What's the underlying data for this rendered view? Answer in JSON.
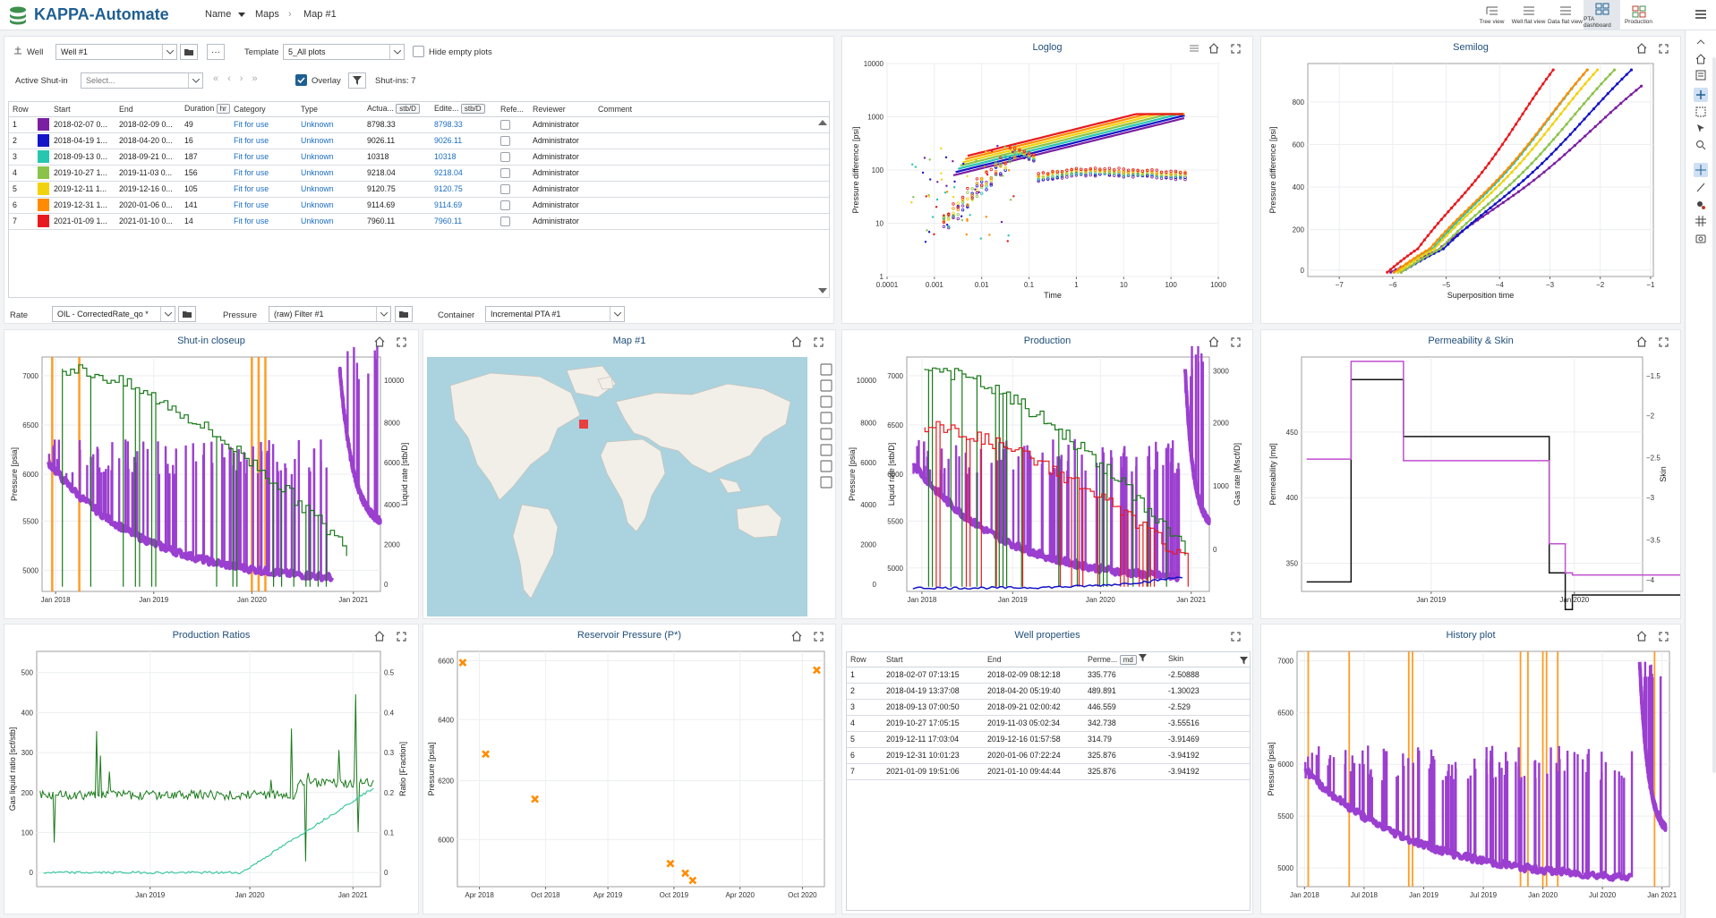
{
  "app": {
    "title": "KAPPA-Automate"
  },
  "breadcrumb": {
    "items": [
      "Name",
      "Maps",
      "Map #1"
    ]
  },
  "views": [
    {
      "label": "Tree view"
    },
    {
      "label": "Well flat view"
    },
    {
      "label": "Data flat view"
    },
    {
      "label": "PTA dashboard"
    },
    {
      "label": "Production"
    }
  ],
  "well_panel": {
    "well_label": "Well",
    "well_value": "Well #1",
    "template_label": "Template",
    "template_value": "5_All plots",
    "hide_empty_label": "Hide empty plots",
    "active_shutin_label": "Active Shut-in",
    "active_shutin_placeholder": "Select...",
    "overlay_label": "Overlay",
    "shutins_label": "Shut-ins: 7",
    "columns": {
      "row": "Row",
      "start": "Start",
      "end": "End",
      "duration": "Duration",
      "duration_unit": "hr",
      "category": "Category",
      "type": "Type",
      "actual": "Actua...",
      "actual_unit": "stb/D",
      "edited": "Edite...",
      "edited_unit": "stb/D",
      "reference": "Refe...",
      "reviewer": "Reviewer",
      "comment": "Comment"
    },
    "rows": [
      {
        "row": "1",
        "color": "#7b1fa2",
        "start": "2018-02-07 0...",
        "end": "2018-02-09 0...",
        "duration": "49",
        "category": "Fit for use",
        "type": "Unknown",
        "actual": "8798.33",
        "edited": "8798.33",
        "reviewer": "Administrator"
      },
      {
        "row": "2",
        "color": "#1414c8",
        "start": "2018-04-19 1...",
        "end": "2018-04-20 0...",
        "duration": "16",
        "category": "Fit for use",
        "type": "Unknown",
        "actual": "9026.11",
        "edited": "9026.11",
        "reviewer": "Administrator"
      },
      {
        "row": "3",
        "color": "#26c6b0",
        "start": "2018-09-13 0...",
        "end": "2018-09-21 0...",
        "duration": "187",
        "category": "Fit for use",
        "type": "Unknown",
        "actual": "10318",
        "edited": "10318",
        "reviewer": "Administrator"
      },
      {
        "row": "4",
        "color": "#8bc34a",
        "start": "2019-10-27 1...",
        "end": "2019-11-03 0...",
        "duration": "156",
        "category": "Fit for use",
        "type": "Unknown",
        "actual": "9218.04",
        "edited": "9218.04",
        "reviewer": "Administrator"
      },
      {
        "row": "5",
        "color": "#f2d20f",
        "start": "2019-12-11 1...",
        "end": "2019-12-16 0...",
        "duration": "105",
        "category": "Fit for use",
        "type": "Unknown",
        "actual": "9120.75",
        "edited": "9120.75",
        "reviewer": "Administrator"
      },
      {
        "row": "6",
        "color": "#ff8c00",
        "start": "2019-12-31 1...",
        "end": "2020-01-06 0...",
        "duration": "141",
        "category": "Fit for use",
        "type": "Unknown",
        "actual": "9114.69",
        "edited": "9114.69",
        "reviewer": "Administrator"
      },
      {
        "row": "7",
        "color": "#e8191e",
        "start": "2021-01-09 1...",
        "end": "2021-01-10 0...",
        "duration": "14",
        "category": "Fit for use",
        "type": "Unknown",
        "actual": "7960.11",
        "edited": "7960.11",
        "reviewer": "Administrator"
      }
    ],
    "rate_label": "Rate",
    "rate_value": "OIL - CorrectedRate_qo *",
    "pressure_label": "Pressure",
    "pressure_value": "(raw) Filter #1",
    "container_label": "Container",
    "container_value": "Incremental PTA #1"
  },
  "plots": {
    "loglog": {
      "title": "Loglog",
      "xlabel": "Time",
      "ylabel": "Pressure difference [psi]",
      "xticks": [
        "0.0001",
        "0.001",
        "0.01",
        "0.1",
        "1",
        "10",
        "100",
        "1000"
      ],
      "yticks": [
        "1",
        "10",
        "100",
        "1000",
        "10000"
      ]
    },
    "semilog": {
      "title": "Semilog",
      "xlabel": "Superposition time",
      "ylabel": "Pressure difference [psi]",
      "xticks": [
        "−7",
        "−6",
        "−5",
        "−4",
        "−3",
        "−2",
        "−1"
      ],
      "yticks": [
        "0",
        "200",
        "400",
        "600",
        "800"
      ]
    },
    "shutin": {
      "title": "Shut-in closeup",
      "ylabel": "Pressure [psia]",
      "y2label": "Liquid rate [stb/D]",
      "xticks": [
        "Jan 2018",
        "Jan 2019",
        "Jan 2020",
        "Jan 2021"
      ],
      "yticks": [
        "5000",
        "5500",
        "6000",
        "6500",
        "7000"
      ],
      "y2ticks": [
        "0",
        "2000",
        "4000",
        "6000",
        "8000",
        "10000"
      ]
    },
    "map": {
      "title": "Map #1"
    },
    "production": {
      "title": "Production",
      "ylabel": "Pressure [psia]",
      "ylabel2": "Liquid rate [stb/D]",
      "y2label": "Gas rate [Mscf/D]",
      "xticks": [
        "Jan 2018",
        "Jan 2019",
        "Jan 2020",
        "Jan 2021"
      ],
      "yticks": [
        "5000",
        "5500",
        "6000",
        "6500",
        "7000"
      ],
      "yticks2": [
        "0",
        "2000",
        "4000",
        "6000",
        "8000",
        "10000"
      ],
      "y2ticks": [
        "0",
        "1000",
        "2000",
        "3000"
      ]
    },
    "permskin": {
      "title": "Permeability & Skin",
      "ylabel": "Permeability [md]",
      "y2label": "Skin",
      "xticks": [
        "Jan 2019",
        "Jan 2020"
      ],
      "yticks": [
        "350",
        "400",
        "450"
      ],
      "y2ticks": [
        "−1.5",
        "−2",
        "−2.5",
        "−3",
        "−3.5",
        "−4"
      ]
    },
    "ratios": {
      "title": "Production Ratios",
      "ylabel": "Gas liquid ratio [scf/stb]",
      "y2label": "Ratio [Fraction]",
      "xticks": [
        "Jan 2019",
        "Jan 2020",
        "Jan 2021"
      ],
      "yticks": [
        "0",
        "100",
        "200",
        "300",
        "400",
        "500"
      ],
      "y2ticks": [
        "0",
        "0.1",
        "0.2",
        "0.3",
        "0.4",
        "0.5"
      ]
    },
    "pstar": {
      "title": "Reservoir Pressure (P*)",
      "ylabel": "Pressure [psia]",
      "xticks": [
        "Apr 2018",
        "Oct 2018",
        "Apr 2019",
        "Oct 2019",
        "Apr 2020",
        "Oct 2020"
      ],
      "yticks": [
        "6000",
        "6200",
        "6400",
        "6600"
      ]
    },
    "wellprops": {
      "title": "Well properties",
      "columns": {
        "row": "Row",
        "start": "Start",
        "end": "End",
        "perm": "Perme...",
        "perm_unit": "md",
        "skin": "Skin"
      },
      "rows": [
        {
          "row": "1",
          "start": "2018-02-07 07:13:15",
          "end": "2018-02-09 08:12:18",
          "perm": "335.776",
          "skin": "-2.50888"
        },
        {
          "row": "2",
          "start": "2018-04-19 13:37:08",
          "end": "2018-04-20 05:19:40",
          "perm": "489.891",
          "skin": "-1.30023"
        },
        {
          "row": "3",
          "start": "2018-09-13 07:00:50",
          "end": "2018-09-21 02:00:42",
          "perm": "446.559",
          "skin": "-2.529"
        },
        {
          "row": "4",
          "start": "2019-10-27 17:05:15",
          "end": "2019-11-03 05:02:34",
          "perm": "342.738",
          "skin": "-3.55516"
        },
        {
          "row": "5",
          "start": "2019-12-11 17:03:04",
          "end": "2019-12-16 01:57:58",
          "perm": "314.79",
          "skin": "-3.91469"
        },
        {
          "row": "6",
          "start": "2019-12-31 10:01:23",
          "end": "2020-01-06 07:22:24",
          "perm": "325.876",
          "skin": "-3.94192"
        },
        {
          "row": "7",
          "start": "2021-01-09 19:51:06",
          "end": "2021-01-10 09:44:44",
          "perm": "325.876",
          "skin": "-3.94192"
        }
      ]
    },
    "history": {
      "title": "History plot",
      "ylabel": "Pressure [psia]",
      "xticks": [
        "Jan 2018",
        "Jul 2018",
        "Jan 2019",
        "Jul 2019",
        "Jan 2020",
        "Jul 2020",
        "Jan 2021"
      ],
      "yticks": [
        "5000",
        "5500",
        "6000",
        "6500",
        "7000"
      ]
    }
  },
  "chart_data": [
    {
      "type": "scatter",
      "title": "Reservoir Pressure (P*)",
      "ylabel": "Pressure [psia]",
      "x": [
        "2018-02-10",
        "2018-04-20",
        "2018-09-15",
        "2019-10-27",
        "2019-12-11",
        "2020-01-02",
        "2021-01-09"
      ],
      "y": [
        6590,
        6285,
        6135,
        5920,
        5888,
        5864,
        6565
      ],
      "ylim": [
        5800,
        6600
      ]
    },
    {
      "type": "line",
      "title": "Permeability & Skin",
      "series": [
        {
          "name": "Permeability",
          "x": [
            "2018-02-07",
            "2018-04-19",
            "2018-09-13",
            "2019-10-27",
            "2019-12-11",
            "2019-12-31",
            "2021-01-09"
          ],
          "y": [
            335.776,
            489.891,
            446.559,
            342.738,
            314.79,
            325.876,
            325.876
          ]
        },
        {
          "name": "Skin",
          "x": [
            "2018-02-07",
            "2018-04-19",
            "2018-09-13",
            "2019-10-27",
            "2019-12-11",
            "2019-12-31",
            "2021-01-09"
          ],
          "y": [
            -2.50888,
            -1.30023,
            -2.529,
            -3.55516,
            -3.91469,
            -3.94192,
            -3.94192
          ]
        }
      ]
    }
  ]
}
